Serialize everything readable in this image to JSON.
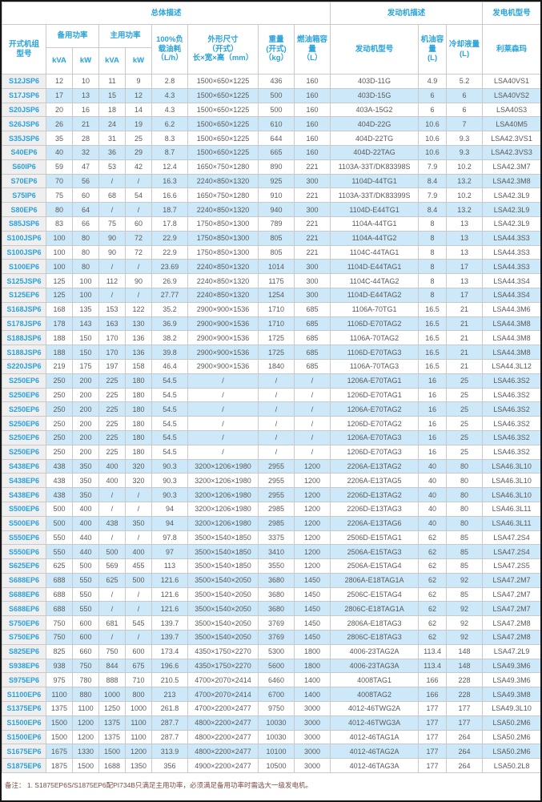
{
  "colors": {
    "accent_header_text": "#29a3da",
    "model_link_text": "#2aa0dc",
    "alt_row_bg": "#cde9f9",
    "model_col_bg": "#efefef",
    "body_text": "#595959",
    "note_text": "#7a4a42",
    "border": "#c9c9c9"
  },
  "header": {
    "group_overall": "总体描述",
    "group_engine": "发动机描述",
    "group_alternator": "发电机型号",
    "col_model": "开式机组\n型号",
    "col_standby": "备用功率",
    "col_prime": "主用功率",
    "kva": "kVA",
    "kw": "kW",
    "col_fuel_consumption": "100%负\n载油耗\n（L/h）",
    "col_dimensions": "外形尺寸\n（开式）\n长×宽×高（mm）",
    "col_weight": "重量\n(开式)\n（kg）",
    "col_tank": "燃油箱容\n量\n（L）",
    "col_engine_model": "发动机型号",
    "col_oil_capacity": "机油容量\n(L)",
    "col_coolant_capacity": "冷却液量\n(L)",
    "col_alternator_brand": "利莱森玛"
  },
  "table": {
    "rows": [
      [
        "S12JSP6",
        "12",
        "10",
        "11",
        "9",
        "2.8",
        "1500×650×1225",
        "436",
        "160",
        "403D-11G",
        "4.9",
        "5.2",
        "LSA40VS1"
      ],
      [
        "S17JSP6",
        "17",
        "13",
        "15",
        "12",
        "4.3",
        "1500×650×1225",
        "500",
        "160",
        "403D-15G",
        "6",
        "6",
        "LSA40VS2"
      ],
      [
        "S20JSP6",
        "20",
        "16",
        "18",
        "14",
        "4.3",
        "1500×650×1225",
        "500",
        "160",
        "403A-15G2",
        "6",
        "6",
        "LSA40S3"
      ],
      [
        "S26JSP6",
        "26",
        "21",
        "24",
        "19",
        "6.2",
        "1500×650×1225",
        "610",
        "160",
        "404D-22G",
        "10.6",
        "7",
        "LSA40M5"
      ],
      [
        "S35JSP6",
        "35",
        "28",
        "31",
        "25",
        "8.3",
        "1500×650×1225",
        "644",
        "160",
        "404D-22TG",
        "10.6",
        "9.3",
        "LSA42.3VS1"
      ],
      [
        "S40EP6",
        "40",
        "32",
        "36",
        "29",
        "8.7",
        "1500×650×1225",
        "665",
        "160",
        "404D-22TAG",
        "10.6",
        "9.3",
        "LSA42.3VS3"
      ],
      [
        "S60IP6",
        "59",
        "47",
        "53",
        "42",
        "12.4",
        "1650×750×1280",
        "890",
        "221",
        "1103A-33T/DK83398S",
        "7.9",
        "10.2",
        "LSA42.3M7"
      ],
      [
        "S70EP6",
        "70",
        "56",
        "/",
        "/",
        "16.3",
        "2240×850×1320",
        "925",
        "300",
        "1104D-44TG1",
        "8.4",
        "13.2",
        "LSA42.3M8"
      ],
      [
        "S75IP6",
        "75",
        "60",
        "68",
        "54",
        "16.6",
        "1650×750×1280",
        "910",
        "221",
        "1103A-33T/DK83399S",
        "7.9",
        "10.2",
        "LSA42.3L9"
      ],
      [
        "S80EP6",
        "80",
        "64",
        "/",
        "/",
        "18.7",
        "2240×850×1320",
        "940",
        "300",
        "1104D-E44TG1",
        "8.4",
        "13.2",
        "LSA42.3L9"
      ],
      [
        "S85JSP6",
        "83",
        "66",
        "75",
        "60",
        "17.8",
        "1750×850×1300",
        "789",
        "221",
        "1104A-44TG1",
        "8",
        "13",
        "LSA42.3L9"
      ],
      [
        "S100JSP6",
        "100",
        "80",
        "90",
        "72",
        "22.9",
        "1750×850×1300",
        "805",
        "221",
        "1104A-44TG2",
        "8",
        "13",
        "LSA44.3S3"
      ],
      [
        "S100JSP6",
        "100",
        "80",
        "90",
        "72",
        "22.9",
        "1750×850×1300",
        "805",
        "221",
        "1104C-44TAG1",
        "8",
        "13",
        "LSA44.3S3"
      ],
      [
        "S100EP6",
        "100",
        "80",
        "/",
        "/",
        "23.69",
        "2240×850×1320",
        "1014",
        "300",
        "1104D-E44TAG1",
        "8",
        "17",
        "LSA44.3S3"
      ],
      [
        "S125JSP6",
        "125",
        "100",
        "112",
        "90",
        "26.9",
        "2240×850×1320",
        "1175",
        "300",
        "1104C-44TAG2",
        "8",
        "13",
        "LSA44.3S4"
      ],
      [
        "S125EP6",
        "125",
        "100",
        "/",
        "/",
        "27.77",
        "2240×850×1320",
        "1254",
        "300",
        "1104D-E44TAG2",
        "8",
        "17",
        "LSA44.3S4"
      ],
      [
        "S168JSP6",
        "168",
        "135",
        "153",
        "122",
        "35.2",
        "2900×900×1536",
        "1710",
        "685",
        "1106A-70TG1",
        "16.5",
        "21",
        "LSA44.3M6"
      ],
      [
        "S178JSP6",
        "178",
        "143",
        "163",
        "130",
        "36.9",
        "2900×900×1536",
        "1710",
        "685",
        "1106D-E70TAG2",
        "16.5",
        "21",
        "LSA44.3M8"
      ],
      [
        "S188JSP6",
        "188",
        "150",
        "170",
        "136",
        "38.2",
        "2900×900×1536",
        "1725",
        "685",
        "1106A-70TAG2",
        "16.5",
        "21",
        "LSA44.3M8"
      ],
      [
        "S188JSP6",
        "188",
        "150",
        "170",
        "136",
        "39.8",
        "2900×900×1536",
        "1725",
        "685",
        "1106D-E70TAG3",
        "16.5",
        "21",
        "LSA44.3M8"
      ],
      [
        "S220JSP6",
        "219",
        "175",
        "197",
        "158",
        "46.4",
        "2900×900×1536",
        "1840",
        "685",
        "1106A-70TAG3",
        "16.5",
        "21",
        "LSA44.3L12"
      ],
      [
        "S250EP6",
        "250",
        "200",
        "225",
        "180",
        "54.5",
        "/",
        "/",
        "/",
        "1206A-E70TAG1",
        "16",
        "25",
        "LSA46.3S2"
      ],
      [
        "S250EP6",
        "250",
        "200",
        "225",
        "180",
        "54.5",
        "/",
        "/",
        "/",
        "1206D-E70TAG1",
        "16",
        "25",
        "LSA46.3S2"
      ],
      [
        "S250EP6",
        "250",
        "200",
        "225",
        "180",
        "54.5",
        "/",
        "/",
        "/",
        "1206A-E70TAG2",
        "16",
        "25",
        "LSA46.3S2"
      ],
      [
        "S250EP6",
        "250",
        "200",
        "225",
        "180",
        "54.5",
        "/",
        "/",
        "/",
        "1206D-E70TAG2",
        "16",
        "25",
        "LSA46.3S2"
      ],
      [
        "S250EP6",
        "250",
        "200",
        "225",
        "180",
        "54.5",
        "/",
        "/",
        "/",
        "1206A-E70TAG3",
        "16",
        "25",
        "LSA46.3S2"
      ],
      [
        "S250EP6",
        "250",
        "200",
        "225",
        "180",
        "54.5",
        "/",
        "/",
        "/",
        "1206D-E70TAG3",
        "16",
        "25",
        "LSA46.3S2"
      ],
      [
        "S438EP6",
        "438",
        "350",
        "400",
        "320",
        "90.3",
        "3200×1206×1980",
        "2955",
        "1200",
        "2206A-E13TAG2",
        "40",
        "80",
        "LSA46.3L10"
      ],
      [
        "S438EP6",
        "438",
        "350",
        "400",
        "320",
        "90.3",
        "3200×1206×1980",
        "2955",
        "1200",
        "2206A-E13TAG5",
        "40",
        "80",
        "LSA46.3L10"
      ],
      [
        "S438EP6",
        "438",
        "350",
        "/",
        "/",
        "90.3",
        "3200×1206×1980",
        "2955",
        "1200",
        "2206D-E13TAG2",
        "40",
        "80",
        "LSA46.3L10"
      ],
      [
        "S500EP6",
        "500",
        "400",
        "/",
        "/",
        "94",
        "3200×1206×1980",
        "2985",
        "1200",
        "2206D-E13TAG3",
        "40",
        "80",
        "LSA46.3L11"
      ],
      [
        "S500EP6",
        "500",
        "400",
        "438",
        "350",
        "94",
        "3200×1206×1980",
        "2985",
        "1200",
        "2206A-E13TAG6",
        "40",
        "80",
        "LSA46.3L11"
      ],
      [
        "S550EP6",
        "550",
        "440",
        "/",
        "/",
        "97.8",
        "3500×1540×1850",
        "3375",
        "1200",
        "2506D-E15TAG1",
        "62",
        "85",
        "LSA47.2S4"
      ],
      [
        "S550EP6",
        "550",
        "440",
        "500",
        "400",
        "97",
        "3500×1540×1850",
        "3410",
        "1200",
        "2506A-E15TAG3",
        "62",
        "85",
        "LSA47.2S4"
      ],
      [
        "S625EP6",
        "625",
        "500",
        "569",
        "455",
        "113",
        "3500×1540×1850",
        "3550",
        "1200",
        "2506A-E15TAG4",
        "62",
        "85",
        "LSA47.2S5"
      ],
      [
        "S688EP6",
        "688",
        "550",
        "625",
        "500",
        "121.6",
        "3500×1540×2050",
        "3680",
        "1450",
        "2806A-E18TAG1A",
        "62",
        "92",
        "LSA47.2M7"
      ],
      [
        "S688EP6",
        "688",
        "550",
        "/",
        "/",
        "121.6",
        "3500×1540×2050",
        "3680",
        "1450",
        "2506C-E15TAG4",
        "62",
        "85",
        "LSA47.2M7"
      ],
      [
        "S688EP6",
        "688",
        "550",
        "/",
        "/",
        "121.6",
        "3500×1540×2050",
        "3680",
        "1450",
        "2806C-E18TAG1A",
        "62",
        "92",
        "LSA47.2M7"
      ],
      [
        "S750EP6",
        "750",
        "600",
        "681",
        "545",
        "139.7",
        "3500×1540×2050",
        "3769",
        "1450",
        "2806A-E18TAG3",
        "62",
        "92",
        "LSA47.2M8"
      ],
      [
        "S750EP6",
        "750",
        "600",
        "/",
        "/",
        "139.7",
        "3500×1540×2050",
        "3769",
        "1450",
        "2806C-E18TAG3",
        "62",
        "92",
        "LSA47.2M8"
      ],
      [
        "S825EP6",
        "825",
        "660",
        "750",
        "600",
        "173.4",
        "4350×1750×2270",
        "5300",
        "1800",
        "4006-23TAG2A",
        "113.4",
        "148",
        "LSA47.2L9"
      ],
      [
        "S938EP6",
        "938",
        "750",
        "844",
        "675",
        "196.6",
        "4350×1750×2270",
        "5600",
        "1800",
        "4006-23TAG3A",
        "113.4",
        "148",
        "LSA49.3M6"
      ],
      [
        "S975EP6",
        "975",
        "780",
        "888",
        "710",
        "210.5",
        "4700×2070×2414",
        "6460",
        "1400",
        "4008TAG1",
        "166",
        "228",
        "LSA49.3M6"
      ],
      [
        "S1100EP6",
        "1100",
        "880",
        "1000",
        "800",
        "213",
        "4700×2070×2414",
        "6700",
        "1400",
        "4008TAG2",
        "166",
        "228",
        "LSA49.3M8"
      ],
      [
        "S1375EP6",
        "1375",
        "1100",
        "1250",
        "1000",
        "261.8",
        "4700×2200×2477",
        "9750",
        "3000",
        "4012-46TWG2A",
        "177",
        "177",
        "LSA49.3L10"
      ],
      [
        "S1500EP6",
        "1500",
        "1200",
        "1375",
        "1100",
        "287.7",
        "4800×2200×2477",
        "10030",
        "3000",
        "4012-46TWG3A",
        "177",
        "177",
        "LSA50.2M6"
      ],
      [
        "S1500EP6",
        "1500",
        "1200",
        "1375",
        "1100",
        "287.7",
        "4800×2200×2477",
        "10030",
        "3000",
        "4012-46TAG1A",
        "177",
        "264",
        "LSA50.2M6"
      ],
      [
        "S1675EP6",
        "1675",
        "1330",
        "1500",
        "1200",
        "313.9",
        "4800×2200×2477",
        "10100",
        "3000",
        "4012-46TAG2A",
        "177",
        "264",
        "LSA50.2M6"
      ],
      [
        "S1875EP6",
        "1875",
        "1500",
        "1688",
        "1350",
        "356",
        "4900×2200×2477",
        "10500",
        "3000",
        "4012-46TAG3A",
        "177",
        "264",
        "LSA50.2L8"
      ]
    ]
  },
  "footnote": "备注：  1. S1875EP6S/S1875EP6配PI734B只满足主用功率，必须满足备用功率时需选大一级发电机。"
}
